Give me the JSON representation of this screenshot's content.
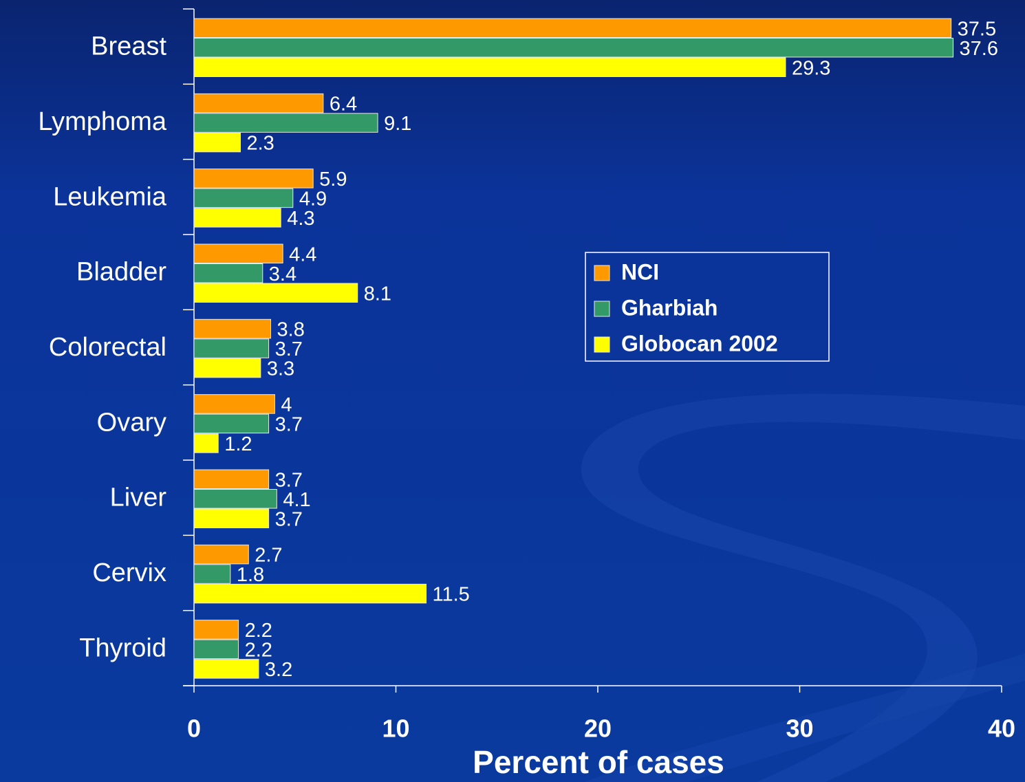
{
  "chart_data": {
    "type": "bar",
    "orientation": "horizontal",
    "xlabel": "Percent of cases",
    "categories": [
      "Breast",
      "Lymphoma",
      "Leukemia",
      "Bladder",
      "Colorectal",
      "Ovary",
      "Liver",
      "Cervix",
      "Thyroid"
    ],
    "series": [
      {
        "name": "NCI",
        "color": "#ff9900",
        "values": [
          37.5,
          6.4,
          5.9,
          4.4,
          3.8,
          4,
          3.7,
          2.7,
          2.2
        ]
      },
      {
        "name": "Gharbiah",
        "color": "#339966",
        "values": [
          37.6,
          9.1,
          4.9,
          3.4,
          3.7,
          3.7,
          4.1,
          1.8,
          2.2
        ]
      },
      {
        "name": "Globocan 2002",
        "color": "#ffff00",
        "values": [
          29.3,
          2.3,
          4.3,
          8.1,
          3.3,
          1.2,
          3.7,
          11.5,
          3.2
        ]
      }
    ],
    "xlim": [
      0,
      40
    ],
    "xticks": [
      0,
      10,
      20,
      30,
      40
    ],
    "legend": "center-right"
  }
}
